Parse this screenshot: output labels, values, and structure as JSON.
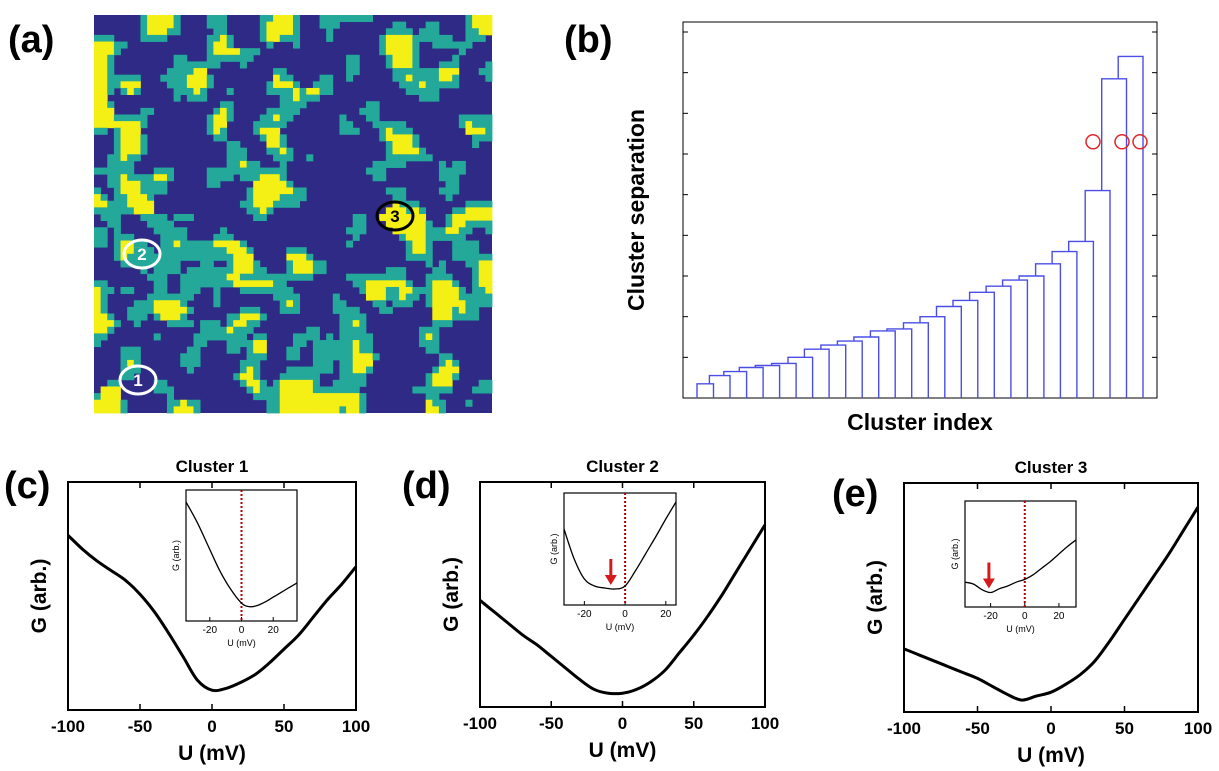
{
  "panels": {
    "a": "(a)",
    "b": "(b)",
    "c": "(c)",
    "d": "(d)",
    "e": "(e)"
  },
  "colors": {
    "map_background": "#2e2a85",
    "cluster_teal": "#23a89a",
    "cluster_yellow": "#f4ef14",
    "dendrogram": "#4a4ee6",
    "highlight_circle": "#e0262a",
    "curve": "#000000",
    "zero_line": "#b00000",
    "arrow": "#d41a1a"
  },
  "map_markers": [
    {
      "label": "1",
      "ring_color": "#ffffff"
    },
    {
      "label": "2",
      "ring_color": "#ffffff"
    },
    {
      "label": "3",
      "ring_color": "#000000"
    }
  ],
  "chart_data": [
    {
      "panel": "b",
      "type": "dendrogram",
      "xlabel": "Cluster index",
      "ylabel": "Cluster separation",
      "ylim": [
        0,
        9
      ],
      "y_ticks": [
        0,
        1,
        2,
        3,
        4,
        5,
        6,
        7,
        8,
        9
      ],
      "merge_heights": [
        0.35,
        0.55,
        0.65,
        0.75,
        0.8,
        0.85,
        1.0,
        1.2,
        1.3,
        1.4,
        1.5,
        1.65,
        1.7,
        1.85,
        2.0,
        2.25,
        2.4,
        2.6,
        2.75,
        2.9,
        3.0,
        3.3,
        3.6,
        3.85,
        5.1,
        7.85,
        8.4
      ],
      "highlighted_merges": 3,
      "highlight_level": 6.3
    },
    {
      "panel": "c",
      "type": "line",
      "title": "Cluster 1",
      "xlabel": "U (mV)",
      "ylabel": "G (arb.)",
      "xlim": [
        -100,
        100
      ],
      "x_ticks": [
        -100,
        -50,
        0,
        50,
        100
      ],
      "ylim": [
        0,
        1
      ],
      "x": [
        -100,
        -90,
        -80,
        -70,
        -60,
        -50,
        -40,
        -30,
        -20,
        -10,
        0,
        10,
        20,
        30,
        40,
        50,
        60,
        70,
        80,
        90,
        100
      ],
      "y": [
        0.85,
        0.78,
        0.72,
        0.67,
        0.62,
        0.55,
        0.46,
        0.35,
        0.23,
        0.11,
        0.06,
        0.07,
        0.1,
        0.14,
        0.2,
        0.27,
        0.34,
        0.43,
        0.52,
        0.6,
        0.69
      ],
      "inset": {
        "xlabel": "U (mV)",
        "ylabel": "G (arb.)",
        "xlim": [
          -35,
          35
        ],
        "x_ticks": [
          -20,
          0,
          20
        ],
        "ylim": [
          0,
          1
        ],
        "x": [
          -35,
          -28,
          -21,
          -14,
          -7,
          0,
          5,
          10,
          15,
          20,
          25,
          30,
          35
        ],
        "y": [
          0.95,
          0.78,
          0.58,
          0.38,
          0.22,
          0.1,
          0.07,
          0.08,
          0.11,
          0.15,
          0.19,
          0.23,
          0.27
        ],
        "zero_line": 0
      }
    },
    {
      "panel": "d",
      "type": "line",
      "title": "Cluster 2",
      "xlabel": "U (mV)",
      "ylabel": "G (arb.)",
      "xlim": [
        -100,
        100
      ],
      "x_ticks": [
        -100,
        -50,
        0,
        50,
        100
      ],
      "ylim": [
        0,
        1
      ],
      "x": [
        -100,
        -90,
        -80,
        -70,
        -60,
        -50,
        -40,
        -30,
        -20,
        -10,
        0,
        10,
        20,
        30,
        40,
        50,
        60,
        70,
        80,
        90,
        100
      ],
      "y": [
        0.51,
        0.45,
        0.39,
        0.33,
        0.28,
        0.22,
        0.16,
        0.1,
        0.05,
        0.03,
        0.03,
        0.05,
        0.09,
        0.15,
        0.24,
        0.33,
        0.43,
        0.54,
        0.66,
        0.78,
        0.9
      ],
      "inset": {
        "xlabel": "U (mV)",
        "ylabel": "G (arb.)",
        "xlim": [
          -30,
          25
        ],
        "x_ticks": [
          -20,
          0,
          20
        ],
        "ylim": [
          0,
          1
        ],
        "x": [
          -30,
          -25,
          -20,
          -15,
          -10,
          -5,
          0,
          5,
          10,
          15,
          20,
          25
        ],
        "y": [
          0.7,
          0.4,
          0.2,
          0.13,
          0.11,
          0.1,
          0.13,
          0.28,
          0.45,
          0.62,
          0.8,
          0.97
        ],
        "zero_line": 0,
        "arrow_at": -7
      }
    },
    {
      "panel": "e",
      "type": "line",
      "title": "Cluster 3",
      "xlabel": "U (mV)",
      "ylabel": "G (arb.)",
      "xlim": [
        -100,
        100
      ],
      "x_ticks": [
        -100,
        -50,
        0,
        50,
        100
      ],
      "ylim": [
        0,
        1
      ],
      "x": [
        -100,
        -90,
        -80,
        -70,
        -60,
        -50,
        -40,
        -30,
        -20,
        -10,
        0,
        10,
        20,
        30,
        40,
        50,
        60,
        70,
        80,
        90,
        100
      ],
      "y": [
        0.28,
        0.25,
        0.22,
        0.19,
        0.16,
        0.13,
        0.09,
        0.05,
        0.02,
        0.04,
        0.06,
        0.1,
        0.15,
        0.22,
        0.32,
        0.43,
        0.54,
        0.65,
        0.76,
        0.88,
        1.0
      ],
      "inset": {
        "xlabel": "U (mV)",
        "ylabel": "G (arb.)",
        "xlim": [
          -35,
          30
        ],
        "x_ticks": [
          -20,
          0,
          20
        ],
        "ylim": [
          0,
          1
        ],
        "x": [
          -35,
          -30,
          -25,
          -20,
          -15,
          -10,
          -5,
          0,
          5,
          10,
          15,
          20,
          25,
          30
        ],
        "y": [
          0.2,
          0.18,
          0.12,
          0.09,
          0.13,
          0.16,
          0.2,
          0.23,
          0.28,
          0.35,
          0.42,
          0.5,
          0.58,
          0.65
        ],
        "zero_line": 0,
        "arrow_at": -21
      }
    }
  ]
}
